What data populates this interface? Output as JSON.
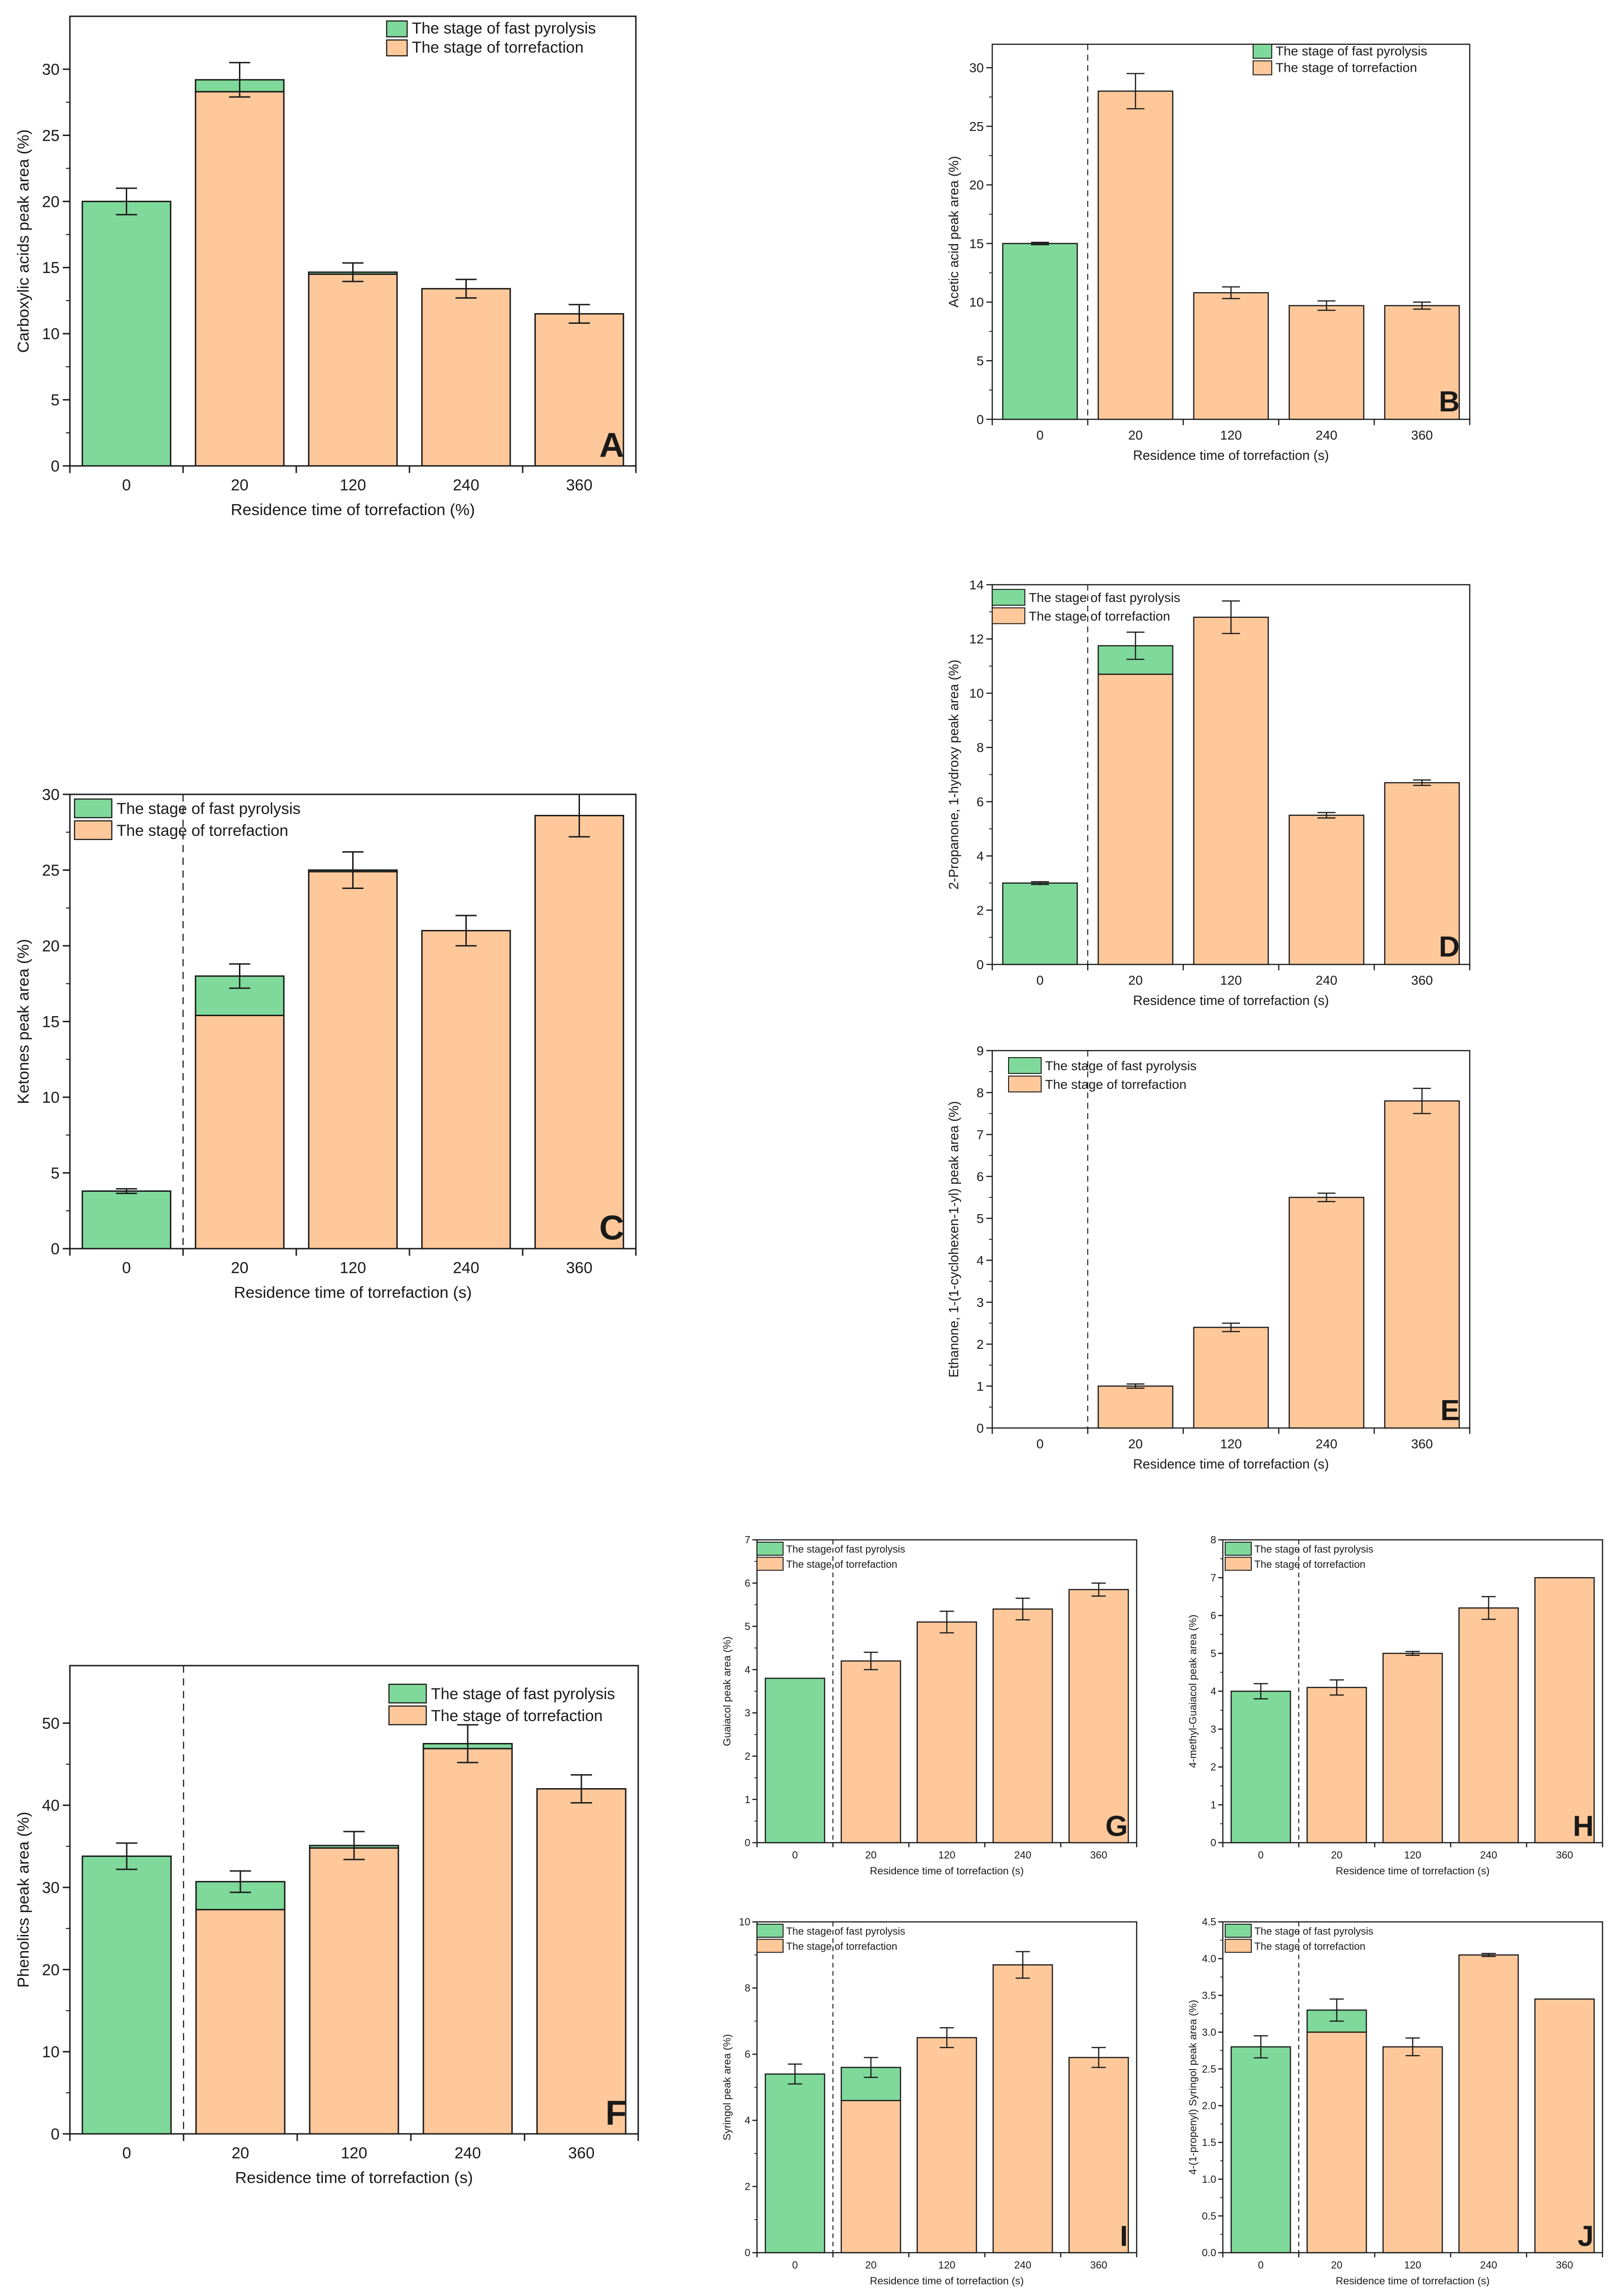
{
  "figure_legend": {
    "fast_pyrolysis": "The stage of fast pyrolysis",
    "torrefaction": "The stage of torrefaction"
  },
  "colors": {
    "fast_pyrolysis": "#7fd99a",
    "torrefaction": "#ffc89a",
    "axis": "#1a1a1a"
  },
  "chart_data": [
    {
      "id": "A",
      "panel_label": "A",
      "type": "bar",
      "stacked": true,
      "categories": [
        "0",
        "20",
        "120",
        "240",
        "360"
      ],
      "series": [
        {
          "name": "The stage of torrefaction",
          "values": [
            0,
            28.3,
            14.5,
            13.4,
            11.5
          ]
        },
        {
          "name": "The stage of fast pyrolysis",
          "values": [
            20.0,
            0.9,
            0.15,
            0,
            0
          ]
        }
      ],
      "error_bars": [
        1.0,
        1.3,
        0.7,
        0.7,
        0.7
      ],
      "ylim": [
        0,
        34
      ],
      "yticks": [
        0,
        5,
        10,
        15,
        20,
        25,
        30
      ],
      "xlabel": "Residence time of torrefaction (%)",
      "ylabel": "Carboxylic acids peak area (%)",
      "legend": "top-right",
      "divider_after": null
    },
    {
      "id": "B",
      "panel_label": "B",
      "type": "bar",
      "stacked": true,
      "categories": [
        "0",
        "20",
        "120",
        "240",
        "360"
      ],
      "series": [
        {
          "name": "The stage of torrefaction",
          "values": [
            0,
            28.0,
            10.8,
            9.7,
            9.7
          ]
        },
        {
          "name": "The stage of fast pyrolysis",
          "values": [
            15.0,
            0,
            0,
            0,
            0
          ]
        }
      ],
      "error_bars": [
        0.1,
        1.5,
        0.5,
        0.4,
        0.3
      ],
      "ylim": [
        0,
        32
      ],
      "yticks": [
        0,
        5,
        10,
        15,
        20,
        25,
        30
      ],
      "xlabel": "Residence time of torrefaction (s)",
      "ylabel": "Acetic acid peak area (%)",
      "legend": "top-right",
      "divider_after": 0
    },
    {
      "id": "C",
      "panel_label": "C",
      "type": "bar",
      "stacked": true,
      "categories": [
        "0",
        "20",
        "120",
        "240",
        "360"
      ],
      "series": [
        {
          "name": "The stage of torrefaction",
          "values": [
            0,
            15.4,
            24.9,
            21.0,
            28.6
          ]
        },
        {
          "name": "The stage of fast pyrolysis",
          "values": [
            3.8,
            2.6,
            0.1,
            0,
            0
          ]
        }
      ],
      "error_bars": [
        0.15,
        0.8,
        1.2,
        1.0,
        1.4
      ],
      "ylim": [
        0,
        30
      ],
      "yticks": [
        0,
        5,
        10,
        15,
        20,
        25,
        30
      ],
      "xlabel": "Residence time of torrefaction (s)",
      "ylabel": "Ketones peak area (%)",
      "legend": "top-left",
      "divider_after": 0
    },
    {
      "id": "D",
      "panel_label": "D",
      "type": "bar",
      "stacked": true,
      "categories": [
        "0",
        "20",
        "120",
        "240",
        "360"
      ],
      "series": [
        {
          "name": "The stage of torrefaction",
          "values": [
            0,
            10.7,
            12.8,
            5.5,
            6.7
          ]
        },
        {
          "name": "The stage of fast pyrolysis",
          "values": [
            3.0,
            1.05,
            0,
            0,
            0
          ]
        }
      ],
      "error_bars": [
        0.05,
        0.5,
        0.6,
        0.1,
        0.1
      ],
      "ylim": [
        0,
        14
      ],
      "yticks": [
        0,
        2,
        4,
        6,
        8,
        10,
        12,
        14
      ],
      "xlabel": "Residence time of torrefaction (s)",
      "ylabel": "2-Propanone, 1-hydroxy peak area (%)",
      "legend": "top-left",
      "divider_after": 0
    },
    {
      "id": "E",
      "panel_label": "E",
      "type": "bar",
      "stacked": true,
      "categories": [
        "0",
        "20",
        "120",
        "240",
        "360"
      ],
      "series": [
        {
          "name": "The stage of torrefaction",
          "values": [
            0,
            1.0,
            2.4,
            5.5,
            7.8
          ]
        },
        {
          "name": "The stage of fast pyrolysis",
          "values": [
            0,
            0,
            0,
            0,
            0
          ]
        }
      ],
      "error_bars": [
        0,
        0.05,
        0.1,
        0.1,
        0.3
      ],
      "ylim": [
        0,
        9
      ],
      "yticks": [
        0,
        1,
        2,
        3,
        4,
        5,
        6,
        7,
        8,
        9
      ],
      "xlabel": "Residence time of torrefaction (s)",
      "ylabel": "Ethanone, 1-(1-cyclohexen-1-yl) peak area (%)",
      "legend": "top-left",
      "divider_after": 0
    },
    {
      "id": "F",
      "panel_label": "F",
      "type": "bar",
      "stacked": true,
      "categories": [
        "0",
        "20",
        "120",
        "240",
        "360"
      ],
      "series": [
        {
          "name": "The stage of torrefaction",
          "values": [
            0,
            27.3,
            34.8,
            46.9,
            42.0
          ]
        },
        {
          "name": "The stage of fast pyrolysis",
          "values": [
            33.8,
            3.4,
            0.3,
            0.6,
            0
          ]
        }
      ],
      "error_bars": [
        1.6,
        1.3,
        1.7,
        2.3,
        1.7
      ],
      "ylim": [
        0,
        57
      ],
      "yticks": [
        0,
        10,
        20,
        30,
        40,
        50
      ],
      "xlabel": "Residence time of torrefaction (s)",
      "ylabel": "Phenolics peak area (%)",
      "legend": "top-right",
      "divider_after": 0
    },
    {
      "id": "G",
      "panel_label": "G",
      "type": "bar",
      "stacked": true,
      "categories": [
        "0",
        "20",
        "120",
        "240",
        "360"
      ],
      "series": [
        {
          "name": "The stage of torrefaction",
          "values": [
            0,
            4.2,
            5.1,
            5.4,
            5.85
          ]
        },
        {
          "name": "The stage of fast pyrolysis",
          "values": [
            3.8,
            0,
            0,
            0,
            0
          ]
        }
      ],
      "error_bars": [
        0,
        0.2,
        0.25,
        0.25,
        0.15
      ],
      "ylim": [
        0,
        7
      ],
      "yticks": [
        0,
        1,
        2,
        3,
        4,
        5,
        6,
        7
      ],
      "xlabel": "Residence time of torrefaction (s)",
      "ylabel": "Guaiacol peak area (%)",
      "legend": "top-left",
      "divider_after": 0
    },
    {
      "id": "H",
      "panel_label": "H",
      "type": "bar",
      "stacked": true,
      "categories": [
        "0",
        "20",
        "120",
        "240",
        "360"
      ],
      "series": [
        {
          "name": "The stage of torrefaction",
          "values": [
            0,
            4.1,
            5.0,
            6.2,
            7.0
          ]
        },
        {
          "name": "The stage of fast pyrolysis",
          "values": [
            4.0,
            0,
            0,
            0,
            0
          ]
        }
      ],
      "error_bars": [
        0.2,
        0.2,
        0.05,
        0.3,
        0
      ],
      "ylim": [
        0,
        8
      ],
      "yticks": [
        0,
        1,
        2,
        3,
        4,
        5,
        6,
        7,
        8
      ],
      "xlabel": "Residence time of torrefaction (s)",
      "ylabel": "4-methyl-Guaiacol peak area (%)",
      "legend": "top-left",
      "divider_after": 0
    },
    {
      "id": "I",
      "panel_label": "I",
      "type": "bar",
      "stacked": true,
      "categories": [
        "0",
        "20",
        "120",
        "240",
        "360"
      ],
      "series": [
        {
          "name": "The stage of torrefaction",
          "values": [
            0,
            4.6,
            6.5,
            8.7,
            5.9
          ]
        },
        {
          "name": "The stage of fast pyrolysis",
          "values": [
            5.4,
            1.0,
            0,
            0,
            0
          ]
        }
      ],
      "error_bars": [
        0.3,
        0.3,
        0.3,
        0.4,
        0.3
      ],
      "ylim": [
        0,
        10
      ],
      "yticks": [
        0,
        2,
        4,
        6,
        8,
        10
      ],
      "xlabel": "Residence time of torrefaction (s)",
      "ylabel": "Syringol peak area (%)",
      "legend": "top-left",
      "divider_after": 0
    },
    {
      "id": "J",
      "panel_label": "J",
      "type": "bar",
      "stacked": true,
      "categories": [
        "0",
        "20",
        "120",
        "240",
        "360"
      ],
      "series": [
        {
          "name": "The stage of torrefaction",
          "values": [
            0,
            3.0,
            2.8,
            4.05,
            3.45
          ]
        },
        {
          "name": "The stage of fast pyrolysis",
          "values": [
            2.8,
            0.3,
            0,
            0,
            0
          ]
        }
      ],
      "error_bars": [
        0.15,
        0.15,
        0.12,
        0.02,
        0
      ],
      "ylim": [
        0,
        4.5
      ],
      "yticks": [
        "0.0",
        "0.5",
        "1.0",
        "1.5",
        "2.0",
        "2.5",
        "3.0",
        "3.5",
        "4.0",
        "4.5"
      ],
      "xlabel": "Residence time of torrefaction (s)",
      "ylabel": "4-(1-propenyl) Syringol peak area (%)",
      "legend": "top-left",
      "divider_after": 0
    }
  ]
}
